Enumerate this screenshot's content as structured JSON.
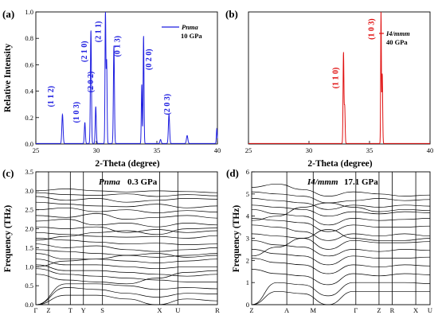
{
  "colors": {
    "blue": "#1f1fe0",
    "red": "#e01010",
    "black": "#000000"
  },
  "chart_data": [
    {
      "id": "a",
      "type": "line",
      "panel_label": "(a)",
      "xlabel": "2-Theta (degree)",
      "ylabel": "Relative Intensity",
      "xlim": [
        25,
        40
      ],
      "ylim": [
        0,
        1.0
      ],
      "xticks": [
        25,
        30,
        35,
        40
      ],
      "yticks": [
        0.0,
        0.2,
        0.4,
        0.6,
        0.8,
        1.0
      ],
      "legend": {
        "phase": "Pnma",
        "pressure": "10 GPa",
        "placement": "top-right"
      },
      "color": "#1f1fe0",
      "peaks": [
        {
          "x": 27.2,
          "y": 0.22,
          "w": 0.07
        },
        {
          "x": 29.05,
          "y": 0.16,
          "w": 0.06
        },
        {
          "x": 29.55,
          "y": 0.86,
          "w": 0.06
        },
        {
          "x": 29.95,
          "y": 0.28,
          "w": 0.06
        },
        {
          "x": 30.75,
          "y": 1.0,
          "w": 0.05
        },
        {
          "x": 30.85,
          "y": 0.62,
          "w": 0.05
        },
        {
          "x": 31.45,
          "y": 0.74,
          "w": 0.06
        },
        {
          "x": 33.75,
          "y": 0.45,
          "w": 0.05
        },
        {
          "x": 33.9,
          "y": 0.82,
          "w": 0.05
        },
        {
          "x": 35.3,
          "y": 0.03,
          "w": 0.07
        },
        {
          "x": 36.0,
          "y": 0.22,
          "w": 0.07
        },
        {
          "x": 37.5,
          "y": 0.06,
          "w": 0.08
        },
        {
          "x": 39.95,
          "y": 0.11,
          "w": 0.05
        }
      ],
      "annotations": [
        {
          "text": "(1 1 2)",
          "x": 26.45,
          "y": 0.36
        },
        {
          "text": "(1 0 3)",
          "x": 28.55,
          "y": 0.24
        },
        {
          "text": "(2 1 0)",
          "x": 29.2,
          "y": 0.7
        },
        {
          "text": "(2 0 2)",
          "x": 29.75,
          "y": 0.47
        },
        {
          "text": "(2 1 1)",
          "x": 30.35,
          "y": 0.85
        },
        {
          "text": "(0 1 3)",
          "x": 31.95,
          "y": 0.74
        },
        {
          "text": "(0 2 0)",
          "x": 34.55,
          "y": 0.64
        },
        {
          "text": "(2 0 3)",
          "x": 36.05,
          "y": 0.3
        }
      ]
    },
    {
      "id": "b",
      "type": "line",
      "panel_label": "(b)",
      "xlabel": "2-Theta (degree)",
      "ylabel": "",
      "xlim": [
        25,
        40
      ],
      "ylim": [
        0,
        1.0
      ],
      "xticks": [
        25,
        30,
        35,
        40
      ],
      "yticks": [],
      "legend": {
        "phase": "I4/mmm",
        "pressure": "40 GPa",
        "placement": "top-right"
      },
      "color": "#e01010",
      "peaks": [
        {
          "x": 32.85,
          "y": 0.69,
          "w": 0.05
        },
        {
          "x": 32.95,
          "y": 0.28,
          "w": 0.05
        },
        {
          "x": 35.95,
          "y": 1.0,
          "w": 0.04
        },
        {
          "x": 36.05,
          "y": 0.53,
          "w": 0.05
        }
      ],
      "annotations": [
        {
          "text": "(1 1 0)",
          "x": 32.4,
          "y": 0.5
        },
        {
          "text": "(1 0 3)",
          "x": 35.35,
          "y": 0.87
        }
      ]
    },
    {
      "id": "c",
      "type": "line",
      "panel_label": "(c)",
      "title_phase": "Pnma",
      "title_pressure": "0.3 GPa",
      "ylabel": "Frequency (THz)",
      "ylim": [
        0,
        3.5
      ],
      "yticks": [
        0.0,
        0.5,
        1.0,
        1.5,
        2.0,
        2.5,
        3.0,
        3.5
      ],
      "kpoints": [
        {
          "label": "Γ",
          "pos": 0
        },
        {
          "label": "Z",
          "pos": 0.07
        },
        {
          "label": "T",
          "pos": 0.19
        },
        {
          "label": "Y",
          "pos": 0.262
        },
        {
          "label": "S",
          "pos": 0.367
        },
        {
          "label": "X",
          "pos": 0.682
        },
        {
          "label": "U",
          "pos": 0.782
        },
        {
          "label": "R",
          "pos": 1.0
        }
      ],
      "vlines": [
        0.07,
        0.19,
        0.262,
        0.367,
        0.682,
        0.782
      ],
      "bands": [
        [
          3.0,
          3.05,
          3.0,
          2.97,
          3.0,
          2.98,
          2.95
        ],
        [
          2.95,
          2.9,
          2.88,
          2.92,
          2.85,
          2.9,
          2.87
        ],
        [
          2.85,
          2.75,
          2.8,
          2.7,
          2.75,
          2.8,
          2.78
        ],
        [
          2.7,
          2.65,
          2.6,
          2.58,
          2.65,
          2.55,
          2.6
        ],
        [
          2.5,
          2.55,
          2.45,
          2.5,
          2.42,
          2.48,
          2.44
        ],
        [
          2.35,
          2.3,
          2.4,
          2.25,
          2.3,
          2.35,
          2.28
        ],
        [
          2.2,
          2.25,
          2.1,
          2.15,
          2.05,
          2.15,
          2.1
        ],
        [
          2.05,
          2.0,
          2.05,
          1.9,
          1.98,
          1.9,
          1.95
        ],
        [
          1.9,
          1.85,
          1.8,
          1.78,
          1.8,
          1.75,
          1.82
        ],
        [
          1.75,
          1.7,
          1.65,
          1.6,
          1.62,
          1.58,
          1.6
        ],
        [
          1.6,
          1.5,
          1.55,
          1.45,
          1.4,
          1.45,
          1.5
        ],
        [
          1.45,
          1.4,
          1.35,
          1.3,
          1.25,
          1.3,
          1.35
        ],
        [
          1.35,
          1.2,
          1.2,
          1.15,
          1.1,
          1.15,
          1.2
        ],
        [
          1.2,
          1.05,
          1.05,
          1.0,
          0.95,
          1.0,
          1.0
        ],
        [
          1.05,
          0.9,
          0.9,
          0.85,
          0.8,
          0.75,
          0.8
        ],
        [
          0.95,
          0.8,
          0.75,
          0.7,
          0.65,
          0.6,
          0.6
        ],
        [
          0.0,
          0.55,
          0.55,
          0.5,
          0.4,
          0.45,
          0.42
        ],
        [
          0.0,
          0.45,
          0.4,
          0.3,
          0.2,
          0.3,
          0.28
        ],
        [
          0.0,
          0.25,
          0.25,
          0.15,
          0.0,
          0.15,
          0.1
        ],
        [
          0.8,
          0.65,
          0.6,
          0.55,
          0.7,
          0.85,
          0.9
        ],
        [
          1.0,
          1.15,
          1.2,
          1.3,
          1.35,
          1.25,
          1.3
        ],
        [
          1.7,
          1.8,
          1.9,
          1.95,
          1.85,
          2.0,
          2.02
        ]
      ]
    },
    {
      "id": "d",
      "type": "line",
      "panel_label": "(d)",
      "title_phase": "I4/mmm",
      "title_pressure": "17.1 GPa",
      "ylabel": "Frequency (THz)",
      "ylim": [
        0,
        6
      ],
      "yticks": [
        0,
        1,
        2,
        3,
        4,
        5,
        6
      ],
      "kpoints": [
        {
          "label": "Z",
          "pos": 0
        },
        {
          "label": "A",
          "pos": 0.197
        },
        {
          "label": "M",
          "pos": 0.345
        },
        {
          "label": "Γ",
          "pos": 0.584
        },
        {
          "label": "Z",
          "pos": 0.714
        },
        {
          "label": "R",
          "pos": 0.788
        },
        {
          "label": "X",
          "pos": 0.92
        },
        {
          "label": "U",
          "pos": 1.0
        }
      ],
      "vlines": [
        0.197,
        0.345,
        0.584,
        0.714,
        0.788,
        0.92
      ],
      "bands": [
        [
          5.3,
          5.45,
          5.2,
          4.9,
          5.1,
          5.0,
          4.9,
          4.95
        ],
        [
          5.1,
          5.0,
          4.9,
          4.6,
          4.7,
          4.8,
          4.7,
          4.75
        ],
        [
          4.8,
          4.7,
          4.6,
          4.3,
          4.5,
          4.4,
          4.5,
          4.45
        ],
        [
          4.5,
          4.4,
          4.3,
          4.0,
          4.2,
          4.1,
          4.2,
          4.15
        ],
        [
          4.3,
          4.1,
          4.0,
          3.6,
          3.9,
          3.8,
          3.85,
          3.9
        ],
        [
          3.9,
          3.8,
          3.7,
          3.3,
          3.6,
          3.5,
          3.5,
          3.55
        ],
        [
          3.6,
          3.5,
          3.3,
          2.9,
          3.2,
          3.1,
          3.2,
          3.1
        ],
        [
          3.2,
          3.1,
          3.0,
          2.5,
          2.9,
          2.8,
          2.8,
          2.85
        ],
        [
          2.9,
          2.7,
          2.6,
          2.2,
          2.5,
          2.4,
          2.5,
          2.45
        ],
        [
          2.5,
          2.3,
          2.2,
          1.8,
          2.2,
          2.1,
          2.1,
          2.15
        ],
        [
          2.1,
          1.9,
          1.8,
          1.4,
          1.8,
          1.7,
          1.8,
          1.75
        ],
        [
          1.6,
          1.4,
          1.3,
          0.9,
          1.4,
          1.3,
          1.4,
          1.35
        ],
        [
          0.0,
          1.0,
          0.9,
          0.4,
          1.0,
          1.0,
          1.0,
          0.95
        ],
        [
          0.0,
          0.6,
          0.5,
          0.0,
          0.6,
          0.6,
          0.6,
          0.6
        ],
        [
          3.8,
          4.0,
          4.4,
          4.6,
          4.4,
          4.2,
          4.3,
          4.25
        ],
        [
          2.2,
          2.6,
          3.0,
          3.4,
          3.0,
          2.9,
          2.9,
          3.0
        ]
      ]
    }
  ]
}
